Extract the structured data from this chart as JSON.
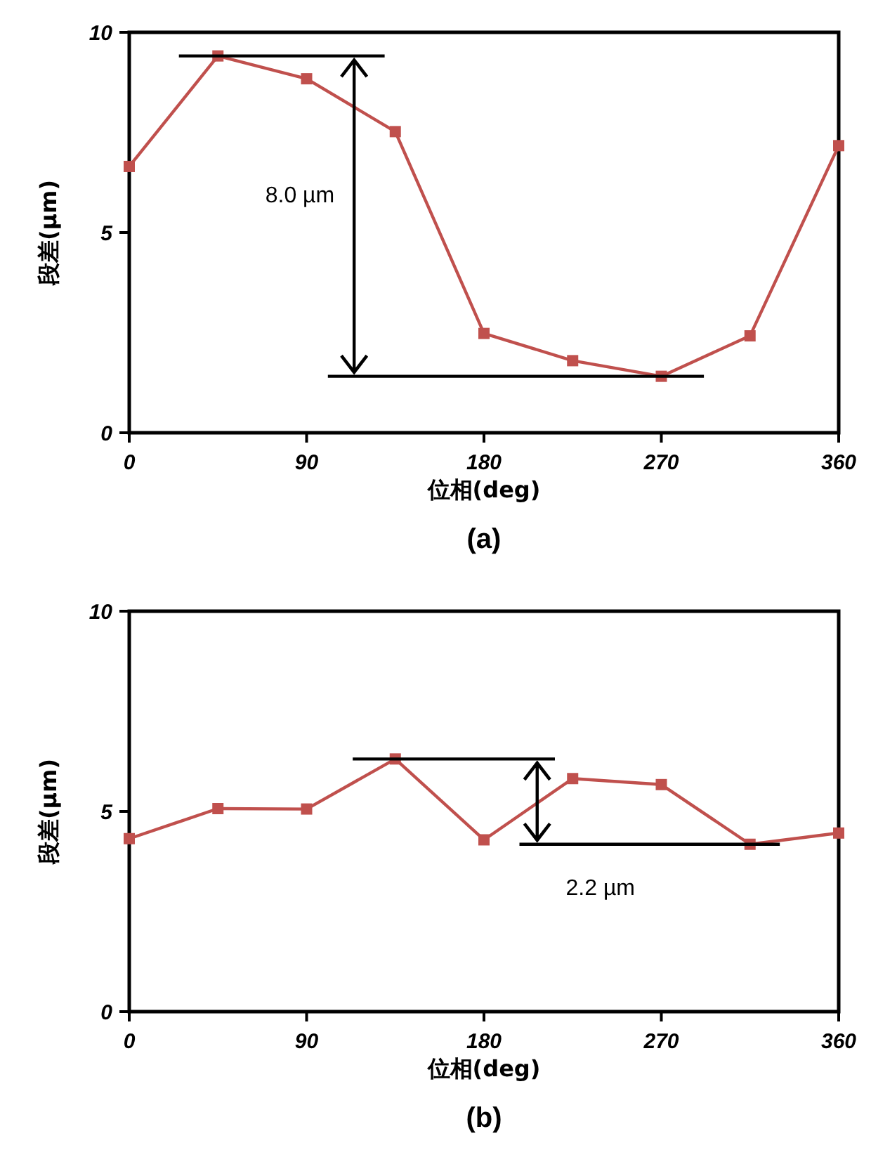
{
  "chart_data": [
    {
      "type": "line",
      "title": "(a)",
      "xlabel": "位相(deg)",
      "ylabel": "段差(μm)",
      "x": [
        0,
        45,
        90,
        135,
        180,
        225,
        270,
        315,
        360
      ],
      "xlim": [
        0,
        360
      ],
      "xticks": [
        0,
        90,
        180,
        270,
        360
      ],
      "ylim": [
        0,
        10
      ],
      "yticks": [
        0,
        5,
        10
      ],
      "marker": "square",
      "grid": false,
      "annotations": [
        "8.0 µm"
      ],
      "ref_lines": [
        {
          "axis": "y",
          "value": 9.41
        },
        {
          "axis": "y",
          "value": 1.41
        }
      ],
      "series": [
        {
          "color": "#c0504d",
          "values": [
            6.65,
            9.41,
            8.84,
            7.52,
            2.48,
            1.8,
            1.41,
            2.42,
            7.17
          ]
        }
      ]
    },
    {
      "type": "line",
      "title": "(b)",
      "xlabel": "位相(deg)",
      "ylabel": "段差(μm)",
      "x": [
        0,
        45,
        90,
        135,
        180,
        225,
        270,
        315,
        360
      ],
      "xlim": [
        0,
        360
      ],
      "xticks": [
        0,
        90,
        180,
        270,
        360
      ],
      "ylim": [
        0,
        10
      ],
      "yticks": [
        0,
        5,
        10
      ],
      "marker": "square",
      "grid": false,
      "annotations": [
        "2.2 µm"
      ],
      "ref_lines": [
        {
          "axis": "y",
          "value": 6.31
        },
        {
          "axis": "y",
          "value": 4.18
        }
      ],
      "series": [
        {
          "color": "#c0504d",
          "values": [
            4.32,
            5.07,
            5.06,
            6.31,
            4.29,
            5.82,
            5.67,
            4.18,
            4.46
          ]
        }
      ]
    }
  ]
}
